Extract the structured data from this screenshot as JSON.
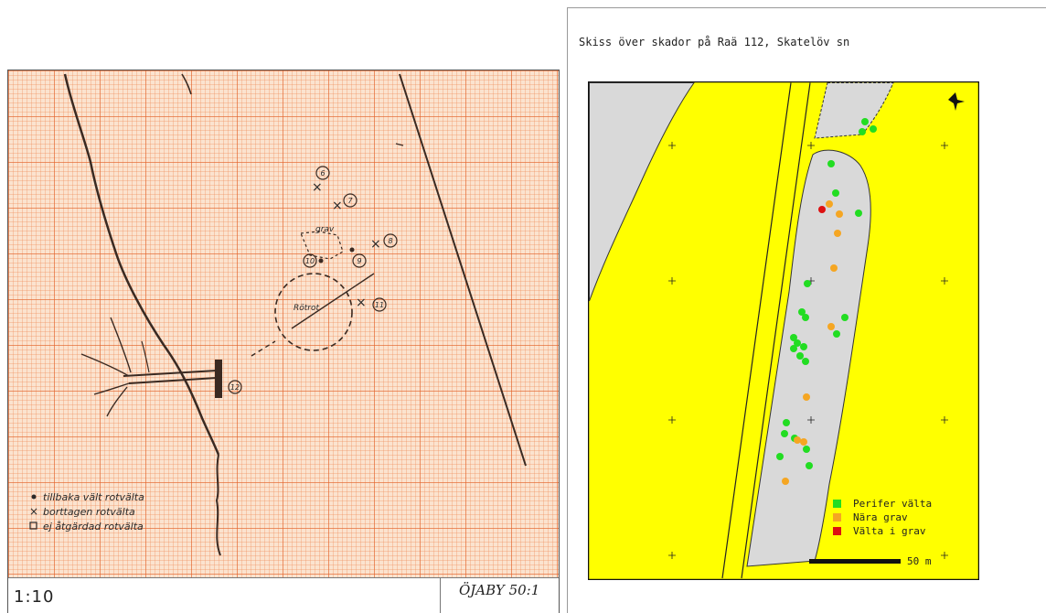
{
  "sketch": {
    "scale_label": "1:10",
    "sheet_label": "ÖJABY 50:1",
    "point_labels": [
      "6",
      "7",
      "8",
      "9",
      "10",
      "11",
      "12"
    ],
    "annotations": {
      "grav": "grav",
      "rot": "Rötrot"
    },
    "legend": [
      {
        "symbol": "dot",
        "text": "tillbaka vält rotvälta"
      },
      {
        "symbol": "cross",
        "text": "borttagen rotvälta"
      },
      {
        "symbol": "square",
        "text": "ej åtgärdad rotvälta"
      }
    ]
  },
  "map": {
    "title": "Skiss över skador på Raä 112, Skatelöv sn",
    "colors": {
      "forest": "#ffff00",
      "clearing": "#d9d9d9",
      "perifer": "#22dd22",
      "nara": "#f5a623",
      "i_grav": "#dd1111"
    },
    "legend": [
      {
        "key": "perifer",
        "label": "Perifer välta"
      },
      {
        "key": "nara",
        "label": "Nära grav"
      },
      {
        "key": "i_grav",
        "label": "Välta i grav"
      }
    ],
    "scalebar_label": "50 m"
  }
}
